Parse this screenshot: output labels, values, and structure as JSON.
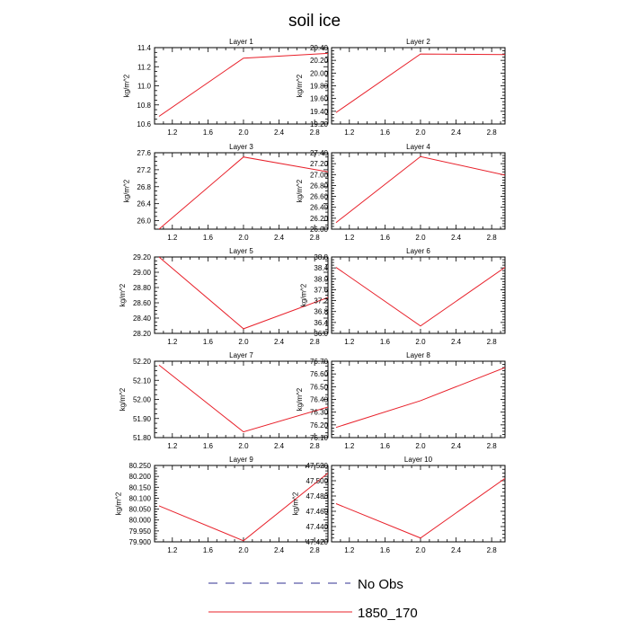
{
  "title": "soil ice",
  "colors": {
    "model_line": "#e8202a",
    "obs_line": "#5a5aa8",
    "axis": "#000000"
  },
  "legend": {
    "entries": [
      {
        "label": "No Obs",
        "style": "dashed",
        "color": "#5a5aa8"
      },
      {
        "label": "1850_170",
        "style": "solid",
        "color": "#e8202a"
      }
    ]
  },
  "chart_data": [
    {
      "type": "line",
      "title": "Layer 1",
      "xlabel": "",
      "ylabel": "kg/m^2",
      "xlim": [
        1.0,
        2.95
      ],
      "ylim": [
        10.6,
        11.4
      ],
      "xticks": [
        1.2,
        1.6,
        2.0,
        2.4,
        2.8
      ],
      "xtick_labels": [
        "1.2",
        "1.6",
        "2.0",
        "2.4",
        "2.8"
      ],
      "yticks": [
        10.6,
        10.8,
        11.0,
        11.2,
        11.4
      ],
      "ytick_labels": [
        "10.6",
        "10.8",
        "11.0",
        "11.2",
        "11.4"
      ],
      "series": [
        {
          "name": "1850_170",
          "x": [
            1.05,
            2.0,
            2.95
          ],
          "y": [
            10.68,
            11.29,
            11.34
          ]
        }
      ]
    },
    {
      "type": "line",
      "title": "Layer 2",
      "xlabel": "",
      "ylabel": "kg/m^2",
      "xlim": [
        1.0,
        2.95
      ],
      "ylim": [
        19.2,
        20.4
      ],
      "xticks": [
        1.2,
        1.6,
        2.0,
        2.4,
        2.8
      ],
      "xtick_labels": [
        "1.2",
        "1.6",
        "2.0",
        "2.4",
        "2.8"
      ],
      "yticks": [
        19.2,
        19.4,
        19.6,
        19.8,
        20.0,
        20.2,
        20.4
      ],
      "ytick_labels": [
        "19.20",
        "19.40",
        "19.60",
        "19.80",
        "20.00",
        "20.20",
        "20.40"
      ],
      "series": [
        {
          "name": "1850_170",
          "x": [
            1.05,
            2.0,
            2.95
          ],
          "y": [
            19.38,
            20.3,
            20.29
          ]
        }
      ]
    },
    {
      "type": "line",
      "title": "Layer 3",
      "xlabel": "",
      "ylabel": "kg/m^2",
      "xlim": [
        1.0,
        2.95
      ],
      "ylim": [
        25.8,
        27.6
      ],
      "xticks": [
        1.2,
        1.6,
        2.0,
        2.4,
        2.8
      ],
      "xtick_labels": [
        "1.2",
        "1.6",
        "2.0",
        "2.4",
        "2.8"
      ],
      "yticks": [
        26.0,
        26.4,
        26.8,
        27.2,
        27.6
      ],
      "ytick_labels": [
        "26.0",
        "26.4",
        "26.8",
        "27.2",
        "27.6"
      ],
      "series": [
        {
          "name": "1850_170",
          "x": [
            1.05,
            2.0,
            2.95
          ],
          "y": [
            25.8,
            27.5,
            27.15
          ]
        }
      ]
    },
    {
      "type": "line",
      "title": "Layer 4",
      "xlabel": "",
      "ylabel": "kg/m^2",
      "xlim": [
        1.0,
        2.95
      ],
      "ylim": [
        26.0,
        27.4
      ],
      "xticks": [
        1.2,
        1.6,
        2.0,
        2.4,
        2.8
      ],
      "xtick_labels": [
        "1.2",
        "1.6",
        "2.0",
        "2.4",
        "2.8"
      ],
      "yticks": [
        26.0,
        26.2,
        26.4,
        26.6,
        26.8,
        27.0,
        27.2,
        27.4
      ],
      "ytick_labels": [
        "26.00",
        "26.20",
        "26.40",
        "26.60",
        "26.80",
        "27.00",
        "27.20",
        "27.40"
      ],
      "series": [
        {
          "name": "1850_170",
          "x": [
            1.05,
            2.0,
            2.95
          ],
          "y": [
            26.12,
            27.33,
            26.99
          ]
        }
      ]
    },
    {
      "type": "line",
      "title": "Layer 5",
      "xlabel": "",
      "ylabel": "kg/m^2",
      "xlim": [
        1.0,
        2.95
      ],
      "ylim": [
        28.2,
        29.2
      ],
      "xticks": [
        1.2,
        1.6,
        2.0,
        2.4,
        2.8
      ],
      "xtick_labels": [
        "1.2",
        "1.6",
        "2.0",
        "2.4",
        "2.8"
      ],
      "yticks": [
        28.2,
        28.4,
        28.6,
        28.8,
        29.0,
        29.2
      ],
      "ytick_labels": [
        "28.20",
        "28.40",
        "28.60",
        "28.80",
        "29.00",
        "29.20"
      ],
      "series": [
        {
          "name": "1850_170",
          "x": [
            1.05,
            2.0,
            2.95
          ],
          "y": [
            29.2,
            28.26,
            28.67
          ]
        }
      ]
    },
    {
      "type": "line",
      "title": "Layer 6",
      "xlabel": "",
      "ylabel": "kg/m^2",
      "xlim": [
        1.0,
        2.95
      ],
      "ylim": [
        36.0,
        38.8
      ],
      "xticks": [
        1.2,
        1.6,
        2.0,
        2.4,
        2.8
      ],
      "xtick_labels": [
        "1.2",
        "1.6",
        "2.0",
        "2.4",
        "2.8"
      ],
      "yticks": [
        36.0,
        36.4,
        36.8,
        37.2,
        37.6,
        38.0,
        38.4,
        38.8
      ],
      "ytick_labels": [
        "36.0",
        "36.4",
        "36.8",
        "37.2",
        "37.6",
        "38.0",
        "38.4",
        "38.8"
      ],
      "series": [
        {
          "name": "1850_170",
          "x": [
            1.05,
            2.0,
            2.95
          ],
          "y": [
            38.42,
            36.27,
            38.42
          ]
        }
      ]
    },
    {
      "type": "line",
      "title": "Layer 7",
      "xlabel": "",
      "ylabel": "kg/m^2",
      "xlim": [
        1.0,
        2.95
      ],
      "ylim": [
        51.8,
        52.2
      ],
      "xticks": [
        1.2,
        1.6,
        2.0,
        2.4,
        2.8
      ],
      "xtick_labels": [
        "1.2",
        "1.6",
        "2.0",
        "2.4",
        "2.8"
      ],
      "yticks": [
        51.8,
        51.9,
        52.0,
        52.1,
        52.2
      ],
      "ytick_labels": [
        "51.80",
        "51.90",
        "52.00",
        "52.10",
        "52.20"
      ],
      "series": [
        {
          "name": "1850_170",
          "x": [
            1.05,
            2.0,
            2.95
          ],
          "y": [
            52.18,
            51.83,
            51.96
          ]
        }
      ]
    },
    {
      "type": "line",
      "title": "Layer 8",
      "xlabel": "",
      "ylabel": "kg/m^2",
      "xlim": [
        1.0,
        2.95
      ],
      "ylim": [
        76.1,
        76.7
      ],
      "xticks": [
        1.2,
        1.6,
        2.0,
        2.4,
        2.8
      ],
      "xtick_labels": [
        "1.2",
        "1.6",
        "2.0",
        "2.4",
        "2.8"
      ],
      "yticks": [
        76.1,
        76.2,
        76.3,
        76.4,
        76.5,
        76.6,
        76.7
      ],
      "ytick_labels": [
        "76.10",
        "76.20",
        "76.30",
        "76.40",
        "76.50",
        "76.60",
        "76.70"
      ],
      "series": [
        {
          "name": "1850_170",
          "x": [
            1.05,
            2.0,
            2.95
          ],
          "y": [
            76.18,
            76.39,
            76.65
          ]
        }
      ]
    },
    {
      "type": "line",
      "title": "Layer 9",
      "xlabel": "",
      "ylabel": "kg/m^2",
      "xlim": [
        1.0,
        2.95
      ],
      "ylim": [
        79.9,
        80.25
      ],
      "xticks": [
        1.2,
        1.6,
        2.0,
        2.4,
        2.8
      ],
      "xtick_labels": [
        "1.2",
        "1.6",
        "2.0",
        "2.4",
        "2.8"
      ],
      "yticks": [
        79.9,
        79.95,
        80.0,
        80.05,
        80.1,
        80.15,
        80.2,
        80.25
      ],
      "ytick_labels": [
        "79.900",
        "79.950",
        "80.000",
        "80.050",
        "80.100",
        "80.150",
        "80.200",
        "80.250"
      ],
      "series": [
        {
          "name": "1850_170",
          "x": [
            1.05,
            2.0,
            2.95
          ],
          "y": [
            80.065,
            79.905,
            80.215
          ]
        }
      ]
    },
    {
      "type": "line",
      "title": "Layer 10",
      "xlabel": "",
      "ylabel": "kg/m^2",
      "xlim": [
        1.0,
        2.95
      ],
      "ylim": [
        47.42,
        47.52
      ],
      "xticks": [
        1.2,
        1.6,
        2.0,
        2.4,
        2.8
      ],
      "xtick_labels": [
        "1.2",
        "1.6",
        "2.0",
        "2.4",
        "2.8"
      ],
      "yticks": [
        47.42,
        47.44,
        47.46,
        47.48,
        47.5,
        47.52
      ],
      "ytick_labels": [
        "47.420",
        "47.440",
        "47.460",
        "47.480",
        "47.500",
        "47.520"
      ],
      "series": [
        {
          "name": "1850_170",
          "x": [
            1.05,
            2.0,
            2.95
          ],
          "y": [
            47.47,
            47.425,
            47.503
          ]
        }
      ]
    }
  ]
}
